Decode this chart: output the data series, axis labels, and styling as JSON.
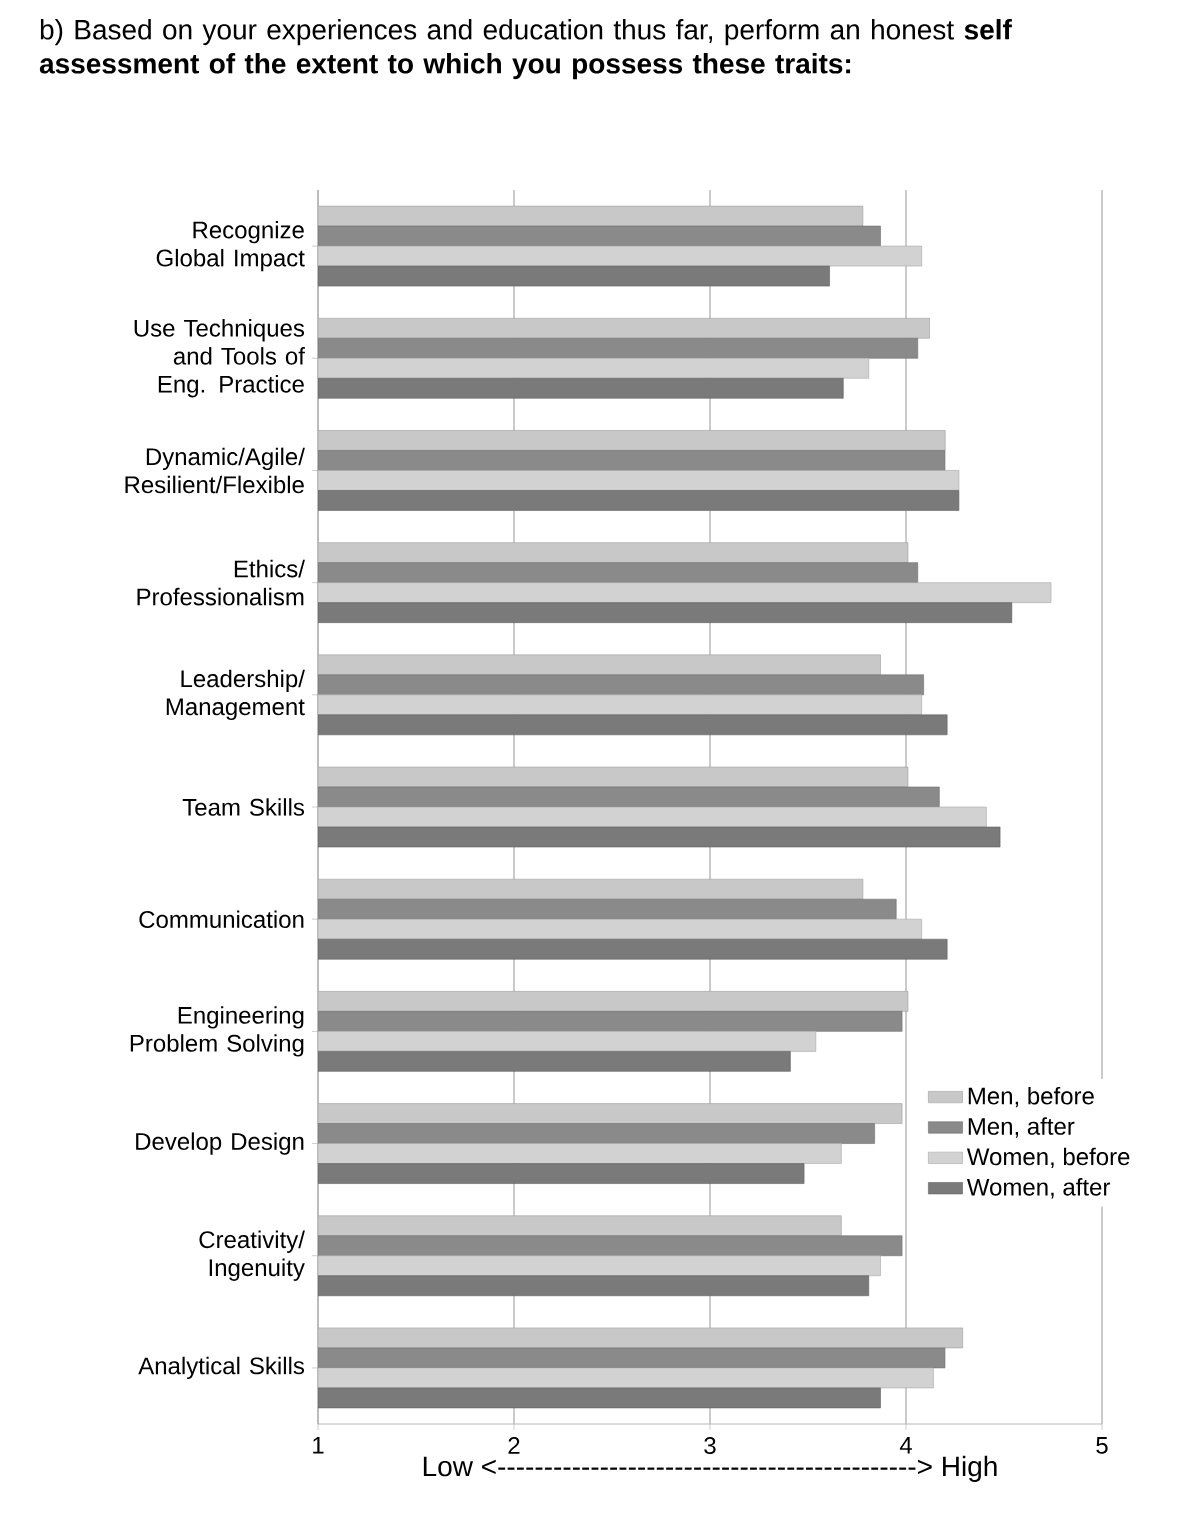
{
  "chart_data": {
    "type": "bar",
    "orientation": "horizontal",
    "title": "b)  Based on your experiences and education thus far, perform an honest **self assessment of the extent to which you possess these traits:**",
    "xlabel": "Low <---------------------------------------------> High",
    "categories": [
      "Recognize Global Impact",
      "Use Techniques and Tools of Eng. Practice",
      "Dynamic/Agile/ Resilient/Flexible",
      "Ethics/ Professionalism",
      "Leadership/ Management",
      "Team Skills",
      "Communication",
      "Engineering Problem Solving",
      "Develop Design",
      "Creativity/ Ingenuity",
      "Analytical Skills"
    ],
    "series": [
      {
        "name": "Men, before",
        "color": "#c8c8c8",
        "values": [
          3.78,
          4.12,
          4.2,
          4.01,
          3.87,
          4.01,
          3.78,
          4.01,
          3.98,
          3.67,
          4.29
        ]
      },
      {
        "name": "Men, after",
        "color": "#8a8a8a",
        "values": [
          3.87,
          4.06,
          4.2,
          4.06,
          4.09,
          4.17,
          3.95,
          3.98,
          3.84,
          3.98,
          4.2
        ]
      },
      {
        "name": "Women, before",
        "color": "#d2d2d2",
        "values": [
          4.08,
          3.81,
          4.27,
          4.74,
          4.08,
          4.41,
          4.08,
          3.54,
          3.67,
          3.87,
          4.14
        ]
      },
      {
        "name": "Women, after",
        "color": "#7a7a7a",
        "values": [
          3.61,
          3.68,
          4.27,
          4.54,
          4.21,
          4.48,
          4.21,
          3.41,
          3.48,
          3.81,
          3.87
        ]
      }
    ],
    "xlim": [
      1,
      5
    ],
    "xticks": [
      1,
      2,
      3,
      4,
      5
    ],
    "grid": "x",
    "legend": "bottom right"
  }
}
